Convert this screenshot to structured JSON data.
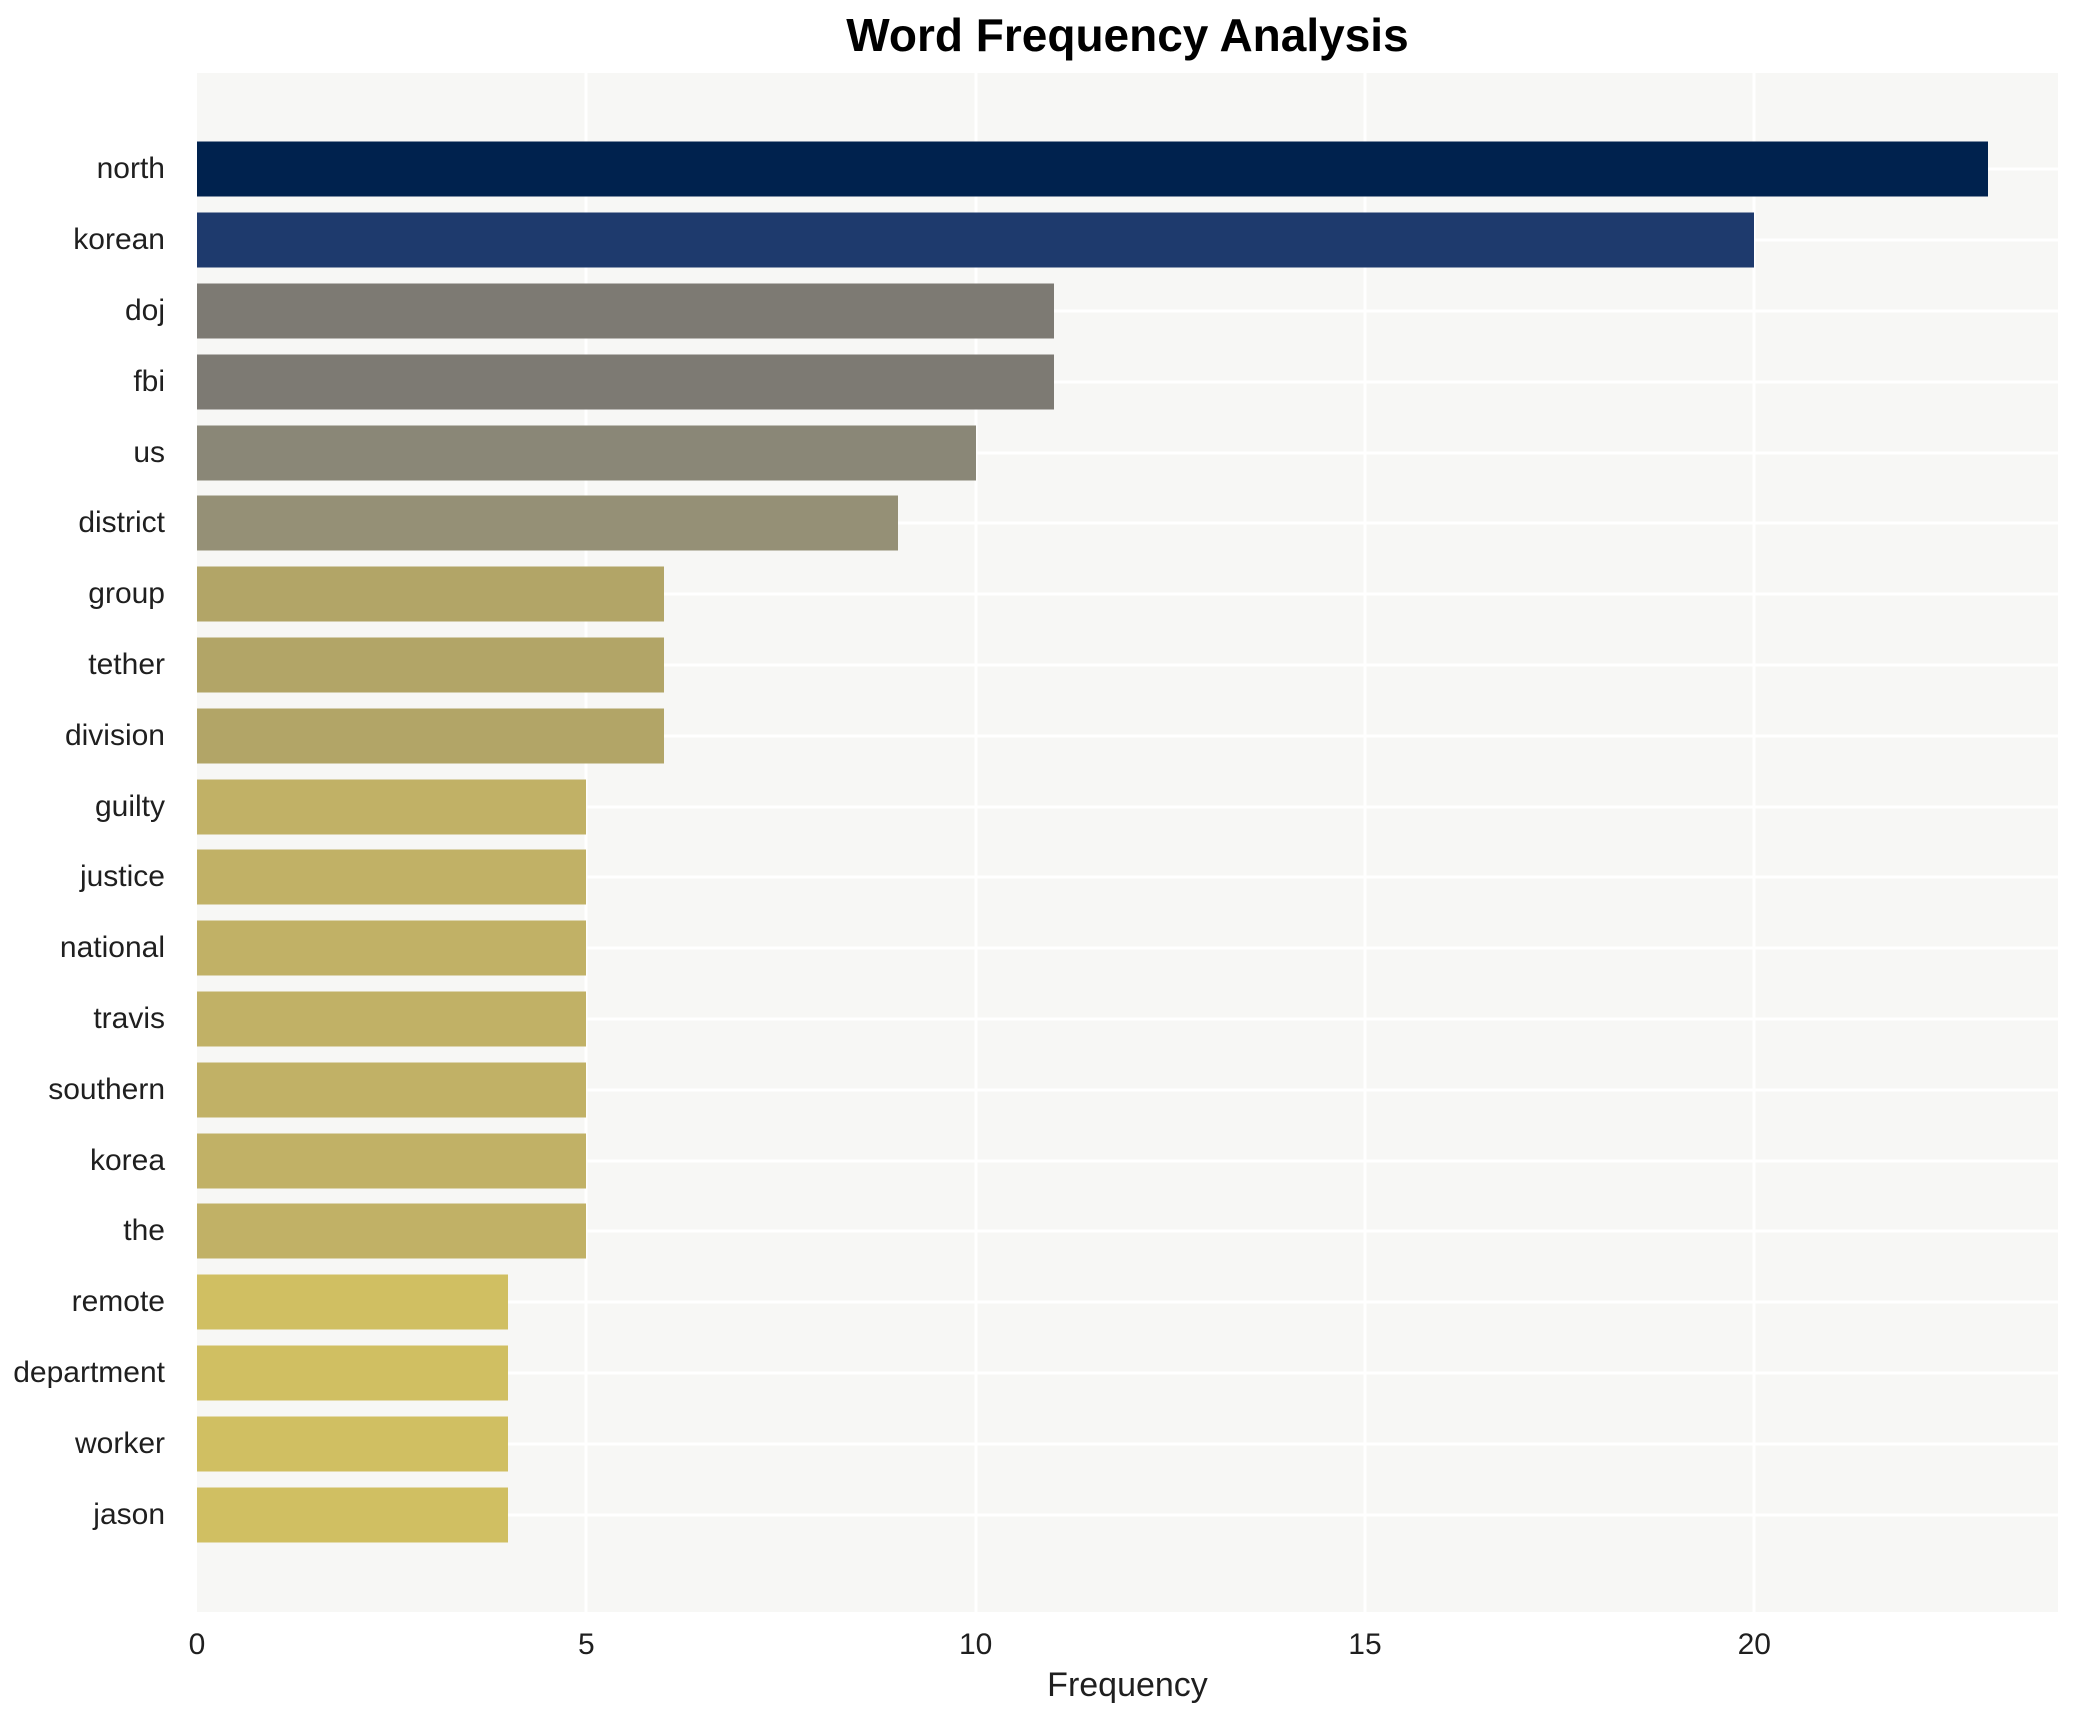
{
  "title": "Word Frequency Analysis",
  "xlabel": "Frequency",
  "chart_data": {
    "type": "bar",
    "orientation": "horizontal",
    "title": "Word Frequency Analysis",
    "xlabel": "Frequency",
    "ylabel": "",
    "categories": [
      "north",
      "korean",
      "doj",
      "fbi",
      "us",
      "district",
      "group",
      "tether",
      "division",
      "guilty",
      "justice",
      "national",
      "travis",
      "southern",
      "korea",
      "the",
      "remote",
      "department",
      "worker",
      "jason"
    ],
    "values": [
      23,
      20,
      11,
      11,
      10,
      9,
      6,
      6,
      6,
      5,
      5,
      5,
      5,
      5,
      5,
      5,
      4,
      4,
      4,
      4
    ],
    "bar_colors": [
      "#00224e",
      "#1e3a6d",
      "#7d7a73",
      "#7d7a73",
      "#8a8777",
      "#959076",
      "#b2a567",
      "#b2a567",
      "#b2a567",
      "#c1b166",
      "#c1b166",
      "#c1b166",
      "#c1b166",
      "#c1b166",
      "#c1b166",
      "#c1b166",
      "#d0bf62",
      "#d0bf62",
      "#d0bf62",
      "#d0bf62"
    ],
    "xlim": [
      0,
      23.9
    ],
    "xticks": [
      0,
      5,
      10,
      15,
      20
    ],
    "xtick_labels": [
      "0",
      "5",
      "10",
      "15",
      "20"
    ],
    "grid": "on",
    "grid_color": "#ffffff",
    "plot_bg": "#f7f7f5",
    "legend": "none"
  }
}
